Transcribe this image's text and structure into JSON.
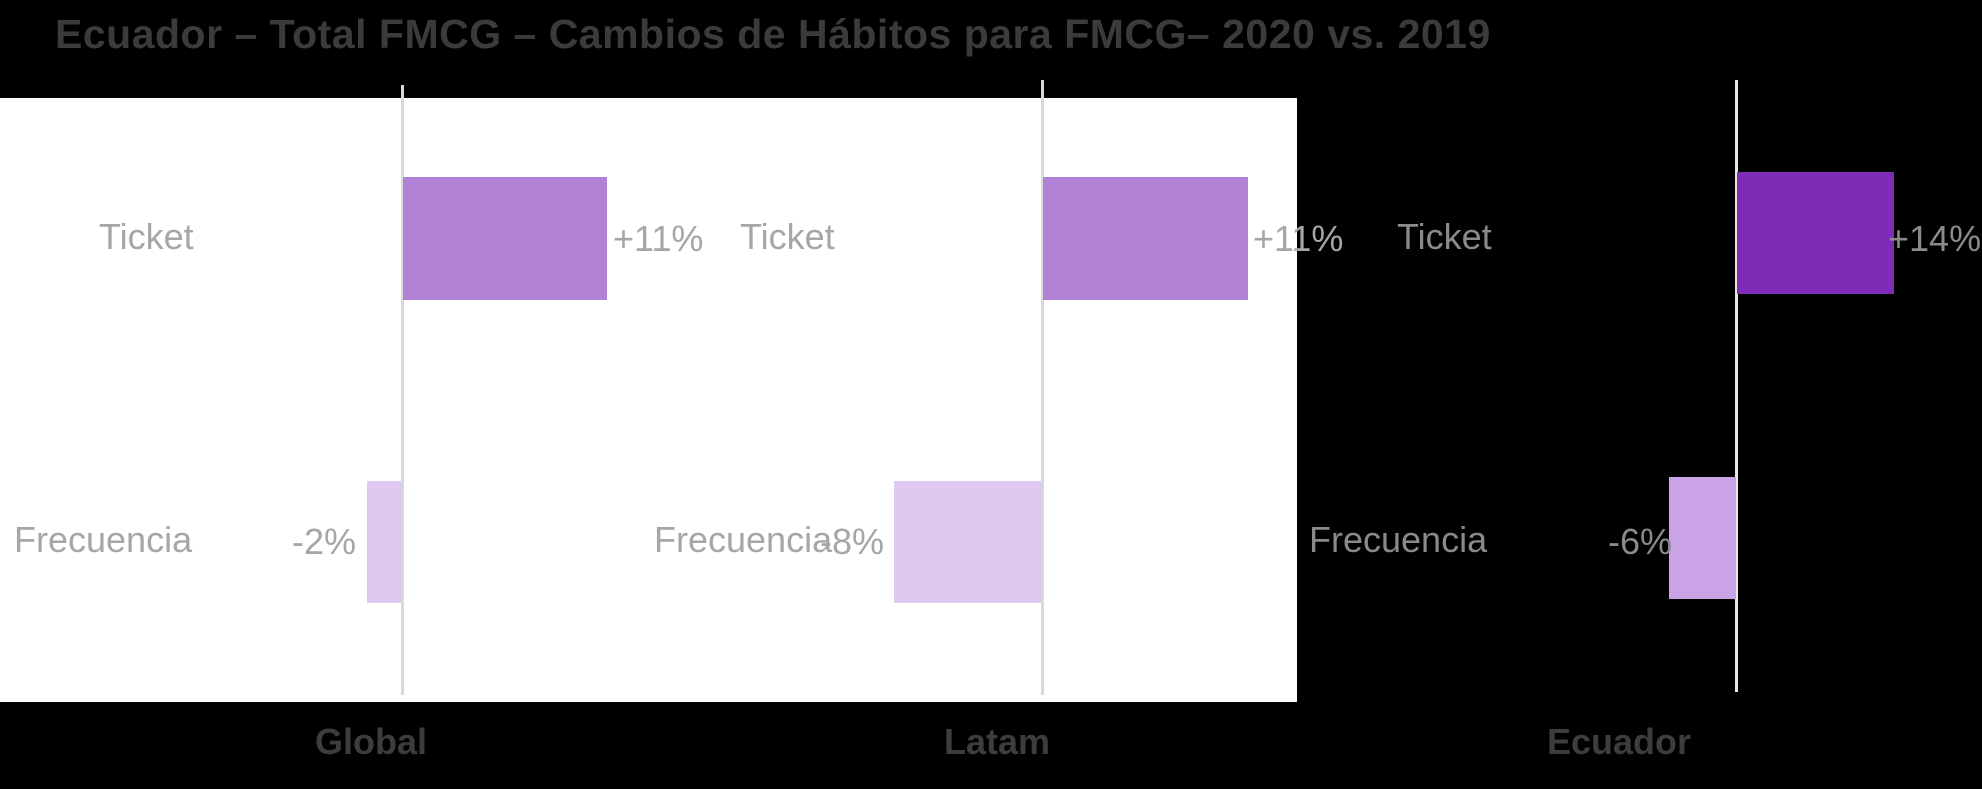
{
  "title": "Ecuador – Total FMCG – Cambios de Hábitos para FMCG– 2020 vs. 2019",
  "colors": {
    "background": "#000000",
    "panel": "#ffffff",
    "title_gray": "#3b3b3d",
    "axis_label_gray": "#3d3d3f",
    "label_gray": "#a6a6a6",
    "label_gray_on_black": "#8a8a8a",
    "axis_line": "#d9d9d9",
    "axis_line_dark_bg": "#e9e9e4",
    "bar_positive": "#b181d3",
    "bar_negative": "#dfc9f0",
    "bar_positive_ecuador": "#7e2bb8",
    "bar_negative_ecuador": "#caa2e6"
  },
  "chart_data": {
    "type": "bar",
    "orientation": "horizontal",
    "title": "Ecuador – Total FMCG – Cambios de Hábitos para FMCG– 2020 vs. 2019",
    "categories": [
      "Ticket",
      "Frecuencia"
    ],
    "series": [
      {
        "name": "Global",
        "values": [
          11,
          -2
        ],
        "labels": [
          "+11%",
          "-2%"
        ]
      },
      {
        "name": "Latam",
        "values": [
          11,
          -8
        ],
        "labels": [
          "+11%",
          "-8%"
        ]
      },
      {
        "name": "Ecuador",
        "values": [
          14,
          -6
        ],
        "labels": [
          "+14%",
          "-6%"
        ]
      }
    ],
    "unit": "%",
    "value_axis_hidden": true,
    "zero_baseline_shown": true,
    "legend": false
  },
  "panels": [
    {
      "axis_label": "Global",
      "cat_ticket": "Ticket",
      "val_ticket": "+11%",
      "cat_frecuencia": "Frecuencia",
      "val_frecuencia": "-2%"
    },
    {
      "axis_label": "Latam",
      "cat_ticket": "Ticket",
      "val_ticket": "+11%",
      "cat_frecuencia": "Frecuencia",
      "val_frecuencia": "-8%"
    },
    {
      "axis_label": "Ecuador",
      "cat_ticket": "Ticket",
      "val_ticket": "+14%",
      "cat_frecuencia": "Frecuencia",
      "val_frecuencia": "-6%"
    }
  ]
}
